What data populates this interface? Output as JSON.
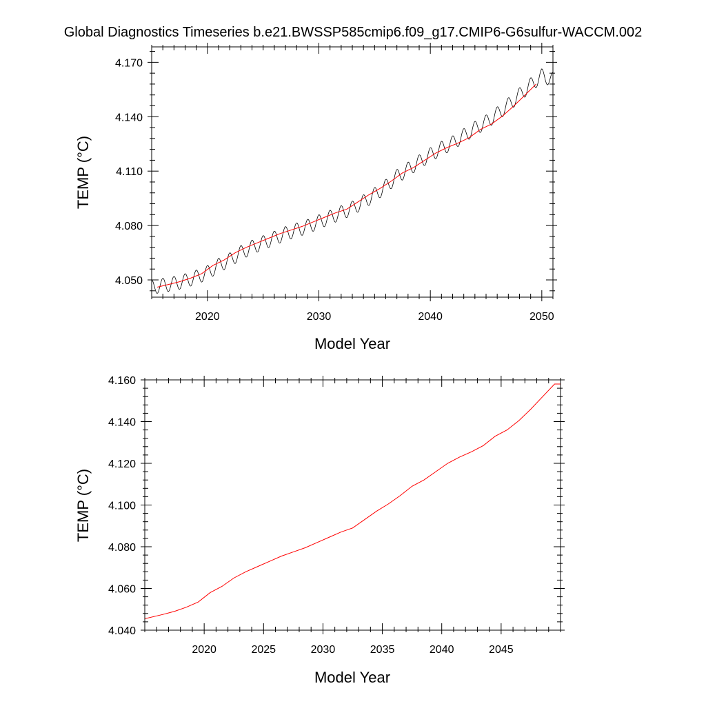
{
  "figure": {
    "title": "Global Diagnostics Timeseries b.e21.BWSSP585cmip6.f09_g17.CMIP6-G6sulfur-WACCM.002"
  },
  "colors": {
    "monthly_line": "#000000",
    "annual_line": "#ff0000",
    "axes": "#000000",
    "background": "#ffffff"
  },
  "chart_data": [
    {
      "type": "line",
      "xlabel": "Model Year",
      "ylabel": "TEMP (°C)",
      "xlim": [
        2015,
        2051
      ],
      "ylim": [
        4.0405,
        4.1785
      ],
      "x_ticks": [
        2020,
        2030,
        2040,
        2050
      ],
      "x_tick_labels": [
        "2020",
        "2030",
        "2040",
        "2050"
      ],
      "y_ticks": [
        4.05,
        4.08,
        4.11,
        4.14,
        4.17
      ],
      "y_tick_labels": [
        "4.050",
        "4.080",
        "4.110",
        "4.140",
        "4.170"
      ],
      "grid": false,
      "series": [
        {
          "kind": "monthly",
          "color": "#000000",
          "seasonal_amplitude": 0.0039,
          "x": [
            2015.0,
            2016.0,
            2017.0,
            2018.0,
            2019.0,
            2020.0,
            2021.0,
            2022.0,
            2023.0,
            2024.0,
            2025.0,
            2026.0,
            2027.0,
            2028.0,
            2029.0,
            2030.0,
            2031.0,
            2032.0,
            2033.0,
            2034.0,
            2035.0,
            2036.0,
            2037.0,
            2038.0,
            2039.0,
            2040.0,
            2041.0,
            2042.0,
            2043.0,
            2044.0,
            2045.0,
            2046.0,
            2047.0,
            2048.0,
            2049.0,
            2050.0,
            2051.0
          ],
          "y": [
            4.046,
            4.047,
            4.048,
            4.0495,
            4.0515,
            4.054,
            4.058,
            4.061,
            4.065,
            4.068,
            4.0705,
            4.073,
            4.0755,
            4.0775,
            4.0795,
            4.082,
            4.0845,
            4.087,
            4.0895,
            4.093,
            4.097,
            4.1015,
            4.107,
            4.111,
            4.115,
            4.119,
            4.1225,
            4.1255,
            4.1295,
            4.1335,
            4.137,
            4.1415,
            4.1465,
            4.152,
            4.1575,
            4.1625,
            4.1605
          ]
        },
        {
          "kind": "annual",
          "color": "#ff0000",
          "x": [
            2015.5,
            2016.5,
            2017.5,
            2018.5,
            2019.5,
            2020.5,
            2021.5,
            2022.5,
            2023.5,
            2024.5,
            2025.5,
            2026.5,
            2027.5,
            2028.5,
            2029.5,
            2030.5,
            2031.5,
            2032.5,
            2033.5,
            2034.5,
            2035.5,
            2036.5,
            2037.5,
            2038.5,
            2039.5,
            2040.5,
            2041.5,
            2042.5,
            2043.5,
            2044.5,
            2045.5,
            2046.5,
            2047.5,
            2048.5,
            2049.5
          ],
          "y": [
            4.046,
            4.0475,
            4.049,
            4.051,
            4.0535,
            4.058,
            4.061,
            4.065,
            4.068,
            4.0705,
            4.073,
            4.0755,
            4.0775,
            4.0795,
            4.082,
            4.0845,
            4.087,
            4.089,
            4.093,
            4.097,
            4.1005,
            4.1045,
            4.109,
            4.112,
            4.116,
            4.12,
            4.123,
            4.1255,
            4.1285,
            4.133,
            4.136,
            4.1405,
            4.146,
            4.152,
            4.158
          ]
        }
      ]
    },
    {
      "type": "line",
      "xlabel": "Model Year",
      "ylabel": "TEMP (°C)",
      "xlim": [
        2015,
        2050
      ],
      "ylim": [
        4.04,
        4.16
      ],
      "x_ticks": [
        2020,
        2025,
        2030,
        2035,
        2040,
        2045
      ],
      "x_tick_labels": [
        "2020",
        "2025",
        "2030",
        "2035",
        "2040",
        "2045"
      ],
      "y_ticks": [
        4.04,
        4.06,
        4.08,
        4.1,
        4.12,
        4.14,
        4.16
      ],
      "y_tick_labels": [
        "4.040",
        "4.060",
        "4.080",
        "4.100",
        "4.120",
        "4.140",
        "4.160"
      ],
      "grid": false,
      "series": [
        {
          "kind": "annual",
          "color": "#ff0000",
          "x": [
            2015.0,
            2016.5,
            2017.5,
            2018.5,
            2019.5,
            2020.5,
            2021.5,
            2022.5,
            2023.5,
            2024.5,
            2025.5,
            2026.5,
            2027.5,
            2028.5,
            2029.5,
            2030.5,
            2031.5,
            2032.5,
            2033.5,
            2034.5,
            2035.5,
            2036.5,
            2037.5,
            2038.5,
            2039.5,
            2040.5,
            2041.5,
            2042.5,
            2043.5,
            2044.5,
            2045.5,
            2046.5,
            2047.5,
            2048.5,
            2049.5,
            2050.0
          ],
          "y": [
            4.0455,
            4.0475,
            4.049,
            4.051,
            4.0535,
            4.058,
            4.061,
            4.065,
            4.068,
            4.0705,
            4.073,
            4.0755,
            4.0775,
            4.0795,
            4.082,
            4.0845,
            4.087,
            4.089,
            4.093,
            4.097,
            4.1005,
            4.1045,
            4.109,
            4.112,
            4.116,
            4.12,
            4.123,
            4.1255,
            4.1285,
            4.133,
            4.136,
            4.1405,
            4.146,
            4.152,
            4.158,
            4.158
          ]
        }
      ]
    }
  ]
}
